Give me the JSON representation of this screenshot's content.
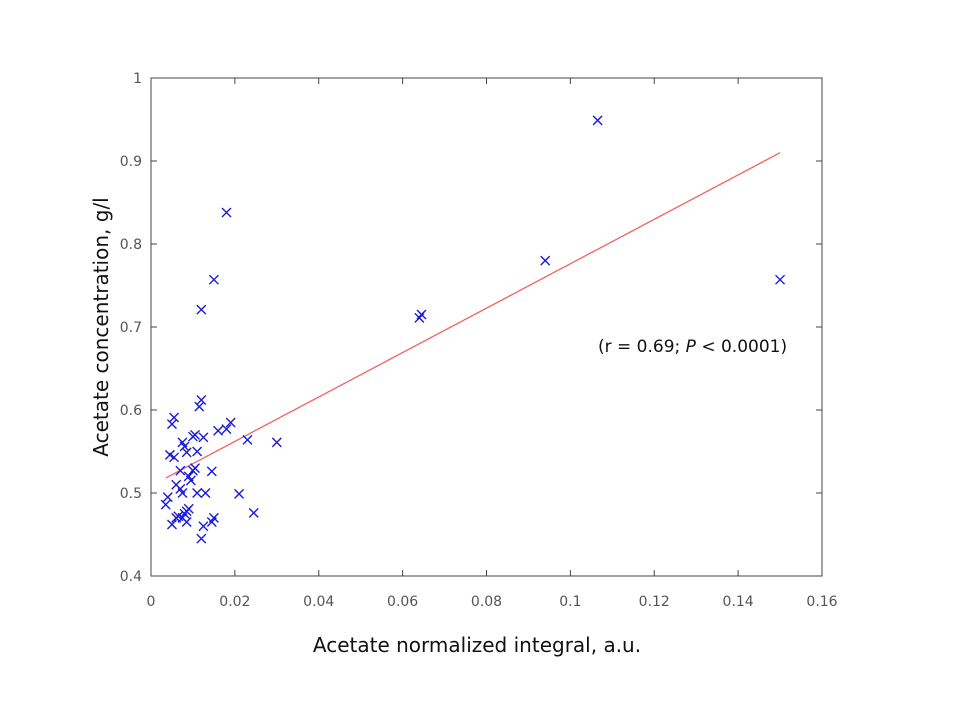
{
  "chart_data": {
    "type": "scatter",
    "title": "",
    "xlabel": "Acetate normalized integral, a.u.",
    "ylabel": "Acetate concentration, g/l",
    "xlim": [
      0,
      0.16
    ],
    "ylim": [
      0.4,
      1
    ],
    "x_ticks": [
      "0",
      "0.02",
      "0.04",
      "0.06",
      "0.08",
      "0.1",
      "0.12",
      "0.14",
      "0.16"
    ],
    "y_ticks": [
      "0.4",
      "0.5",
      "0.6",
      "0.7",
      "0.8",
      "0.9",
      "1"
    ],
    "grid": false,
    "marker": "x",
    "marker_color": "#1a1adb",
    "fit_line_color": "#f06464",
    "annotation": {
      "prefix": "(r = 0.69; ",
      "italic": "P",
      "suffix": " < 0.0001)"
    },
    "fit_line": {
      "x": [
        0.0035,
        0.15
      ],
      "y": [
        0.518,
        0.91
      ]
    },
    "series": [
      {
        "name": "samples",
        "points": [
          [
            0.1065,
            0.949
          ],
          [
            0.094,
            0.78
          ],
          [
            0.15,
            0.757
          ],
          [
            0.0645,
            0.715
          ],
          [
            0.064,
            0.711
          ],
          [
            0.018,
            0.838
          ],
          [
            0.015,
            0.757
          ],
          [
            0.012,
            0.721
          ],
          [
            0.012,
            0.612
          ],
          [
            0.0115,
            0.604
          ],
          [
            0.0055,
            0.591
          ],
          [
            0.005,
            0.583
          ],
          [
            0.019,
            0.585
          ],
          [
            0.018,
            0.577
          ],
          [
            0.016,
            0.575
          ],
          [
            0.0125,
            0.567
          ],
          [
            0.023,
            0.564
          ],
          [
            0.03,
            0.561
          ],
          [
            0.0105,
            0.57
          ],
          [
            0.01,
            0.568
          ],
          [
            0.0075,
            0.561
          ],
          [
            0.008,
            0.556
          ],
          [
            0.0085,
            0.549
          ],
          [
            0.0045,
            0.546
          ],
          [
            0.0055,
            0.543
          ],
          [
            0.011,
            0.55
          ],
          [
            0.0105,
            0.53
          ],
          [
            0.01,
            0.527
          ],
          [
            0.007,
            0.527
          ],
          [
            0.009,
            0.52
          ],
          [
            0.0095,
            0.515
          ],
          [
            0.006,
            0.51
          ],
          [
            0.007,
            0.505
          ],
          [
            0.0075,
            0.5
          ],
          [
            0.004,
            0.495
          ],
          [
            0.0035,
            0.486
          ],
          [
            0.011,
            0.5
          ],
          [
            0.013,
            0.5
          ],
          [
            0.021,
            0.499
          ],
          [
            0.0145,
            0.526
          ],
          [
            0.009,
            0.481
          ],
          [
            0.0085,
            0.478
          ],
          [
            0.008,
            0.475
          ],
          [
            0.0075,
            0.47
          ],
          [
            0.0065,
            0.472
          ],
          [
            0.006,
            0.47
          ],
          [
            0.005,
            0.462
          ],
          [
            0.0085,
            0.465
          ],
          [
            0.0125,
            0.46
          ],
          [
            0.0145,
            0.465
          ],
          [
            0.015,
            0.47
          ],
          [
            0.012,
            0.445
          ],
          [
            0.0245,
            0.476
          ]
        ]
      }
    ]
  }
}
